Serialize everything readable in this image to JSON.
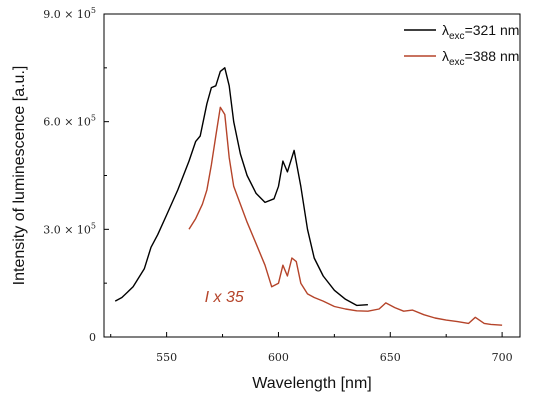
{
  "chart_data": {
    "type": "line",
    "xlabel": "Wavelength [nm]",
    "ylabel": "Intensity of luminescence [a.u.]",
    "xlim": [
      522,
      708
    ],
    "ylim": [
      0,
      900000
    ],
    "x_ticks": [
      "550",
      "600",
      "650",
      "700"
    ],
    "y_ticks": [
      {
        "value": 0,
        "label": "0"
      },
      {
        "value": 300000,
        "label": "3.0 × 10",
        "exp": "5"
      },
      {
        "value": 600000,
        "label": "6.0 × 10",
        "exp": "5"
      },
      {
        "value": 900000,
        "label": "9.0 × 10",
        "exp": "5"
      }
    ],
    "grid": false,
    "legend_position": "top-right",
    "series": [
      {
        "symbol": "λ",
        "sub": "exc",
        "suffix": "=321 nm",
        "color": "#000000",
        "x": [
          527,
          530,
          535,
          540,
          543,
          546,
          550,
          555,
          560,
          563,
          565,
          568,
          570,
          572,
          574,
          576,
          578,
          580,
          583,
          586,
          590,
          594,
          598,
          600,
          602,
          604,
          607,
          610,
          613,
          616,
          620,
          625,
          630,
          635,
          640
        ],
        "y": [
          100000,
          110000,
          140000,
          190000,
          250000,
          285000,
          340000,
          410000,
          490000,
          545000,
          560000,
          650000,
          695000,
          700000,
          740000,
          750000,
          700000,
          600000,
          510000,
          450000,
          400000,
          375000,
          385000,
          420000,
          490000,
          460000,
          520000,
          420000,
          300000,
          220000,
          170000,
          130000,
          105000,
          88000,
          90000
        ]
      },
      {
        "symbol": "λ",
        "sub": "exc",
        "suffix": "=388 nm",
        "color": "#b5442a",
        "x": [
          560,
          563,
          566,
          568,
          570,
          572,
          574,
          576,
          578,
          580,
          583,
          586,
          590,
          594,
          597,
          600,
          602,
          604,
          606,
          608,
          610,
          613,
          616,
          620,
          625,
          630,
          635,
          640,
          645,
          648,
          652,
          656,
          660,
          665,
          670,
          675,
          680,
          685,
          688,
          692,
          695,
          700
        ],
        "y": [
          300000,
          330000,
          370000,
          410000,
          480000,
          560000,
          640000,
          620000,
          500000,
          420000,
          370000,
          320000,
          260000,
          200000,
          140000,
          150000,
          200000,
          170000,
          220000,
          210000,
          150000,
          120000,
          110000,
          100000,
          85000,
          78000,
          73000,
          72000,
          78000,
          95000,
          82000,
          72000,
          75000,
          62000,
          53000,
          47000,
          43000,
          38000,
          55000,
          38000,
          35000,
          33000
        ]
      }
    ],
    "annotations": [
      {
        "text": "I x 35",
        "x": 567,
        "y": 98000,
        "color": "#b5442a"
      }
    ]
  }
}
